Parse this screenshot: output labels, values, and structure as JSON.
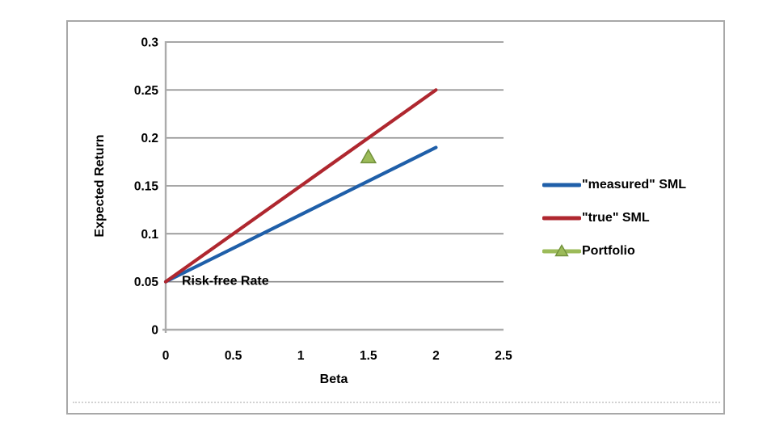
{
  "chart_data": {
    "type": "line",
    "title": "",
    "xlabel": "Beta",
    "ylabel": "Expected Return",
    "xlim": [
      0,
      2.5
    ],
    "ylim": [
      0,
      0.3
    ],
    "x_ticks": [
      0,
      0.5,
      1,
      1.5,
      2,
      2.5
    ],
    "y_ticks": [
      0,
      0.05,
      0.1,
      0.15,
      0.2,
      0.25,
      0.3
    ],
    "grid": "horizontal-only",
    "legend_position": "right-outside",
    "colors": {
      "gridline": "#8a8a8a",
      "axis": "#ababab",
      "tick_text": "#000000",
      "frame_border": "#a8a8a8",
      "background": "#ffffff"
    },
    "series": [
      {
        "name": "\"measured\" SML",
        "type": "line",
        "color": "#1f5fa9",
        "points": [
          [
            0,
            0.05
          ],
          [
            2,
            0.19
          ]
        ]
      },
      {
        "name": "\"true\" SML",
        "type": "line",
        "color": "#af272f",
        "points": [
          [
            0,
            0.05
          ],
          [
            2,
            0.25
          ]
        ]
      },
      {
        "name": "Portfolio",
        "type": "scatter",
        "marker": "triangle",
        "color": "#9cbb59",
        "marker_border_color": "#71913b",
        "points": [
          [
            1.5,
            0.18
          ]
        ]
      }
    ],
    "annotation": {
      "text": "Risk-free Rate",
      "x": 0.12,
      "y": 0.05
    }
  }
}
